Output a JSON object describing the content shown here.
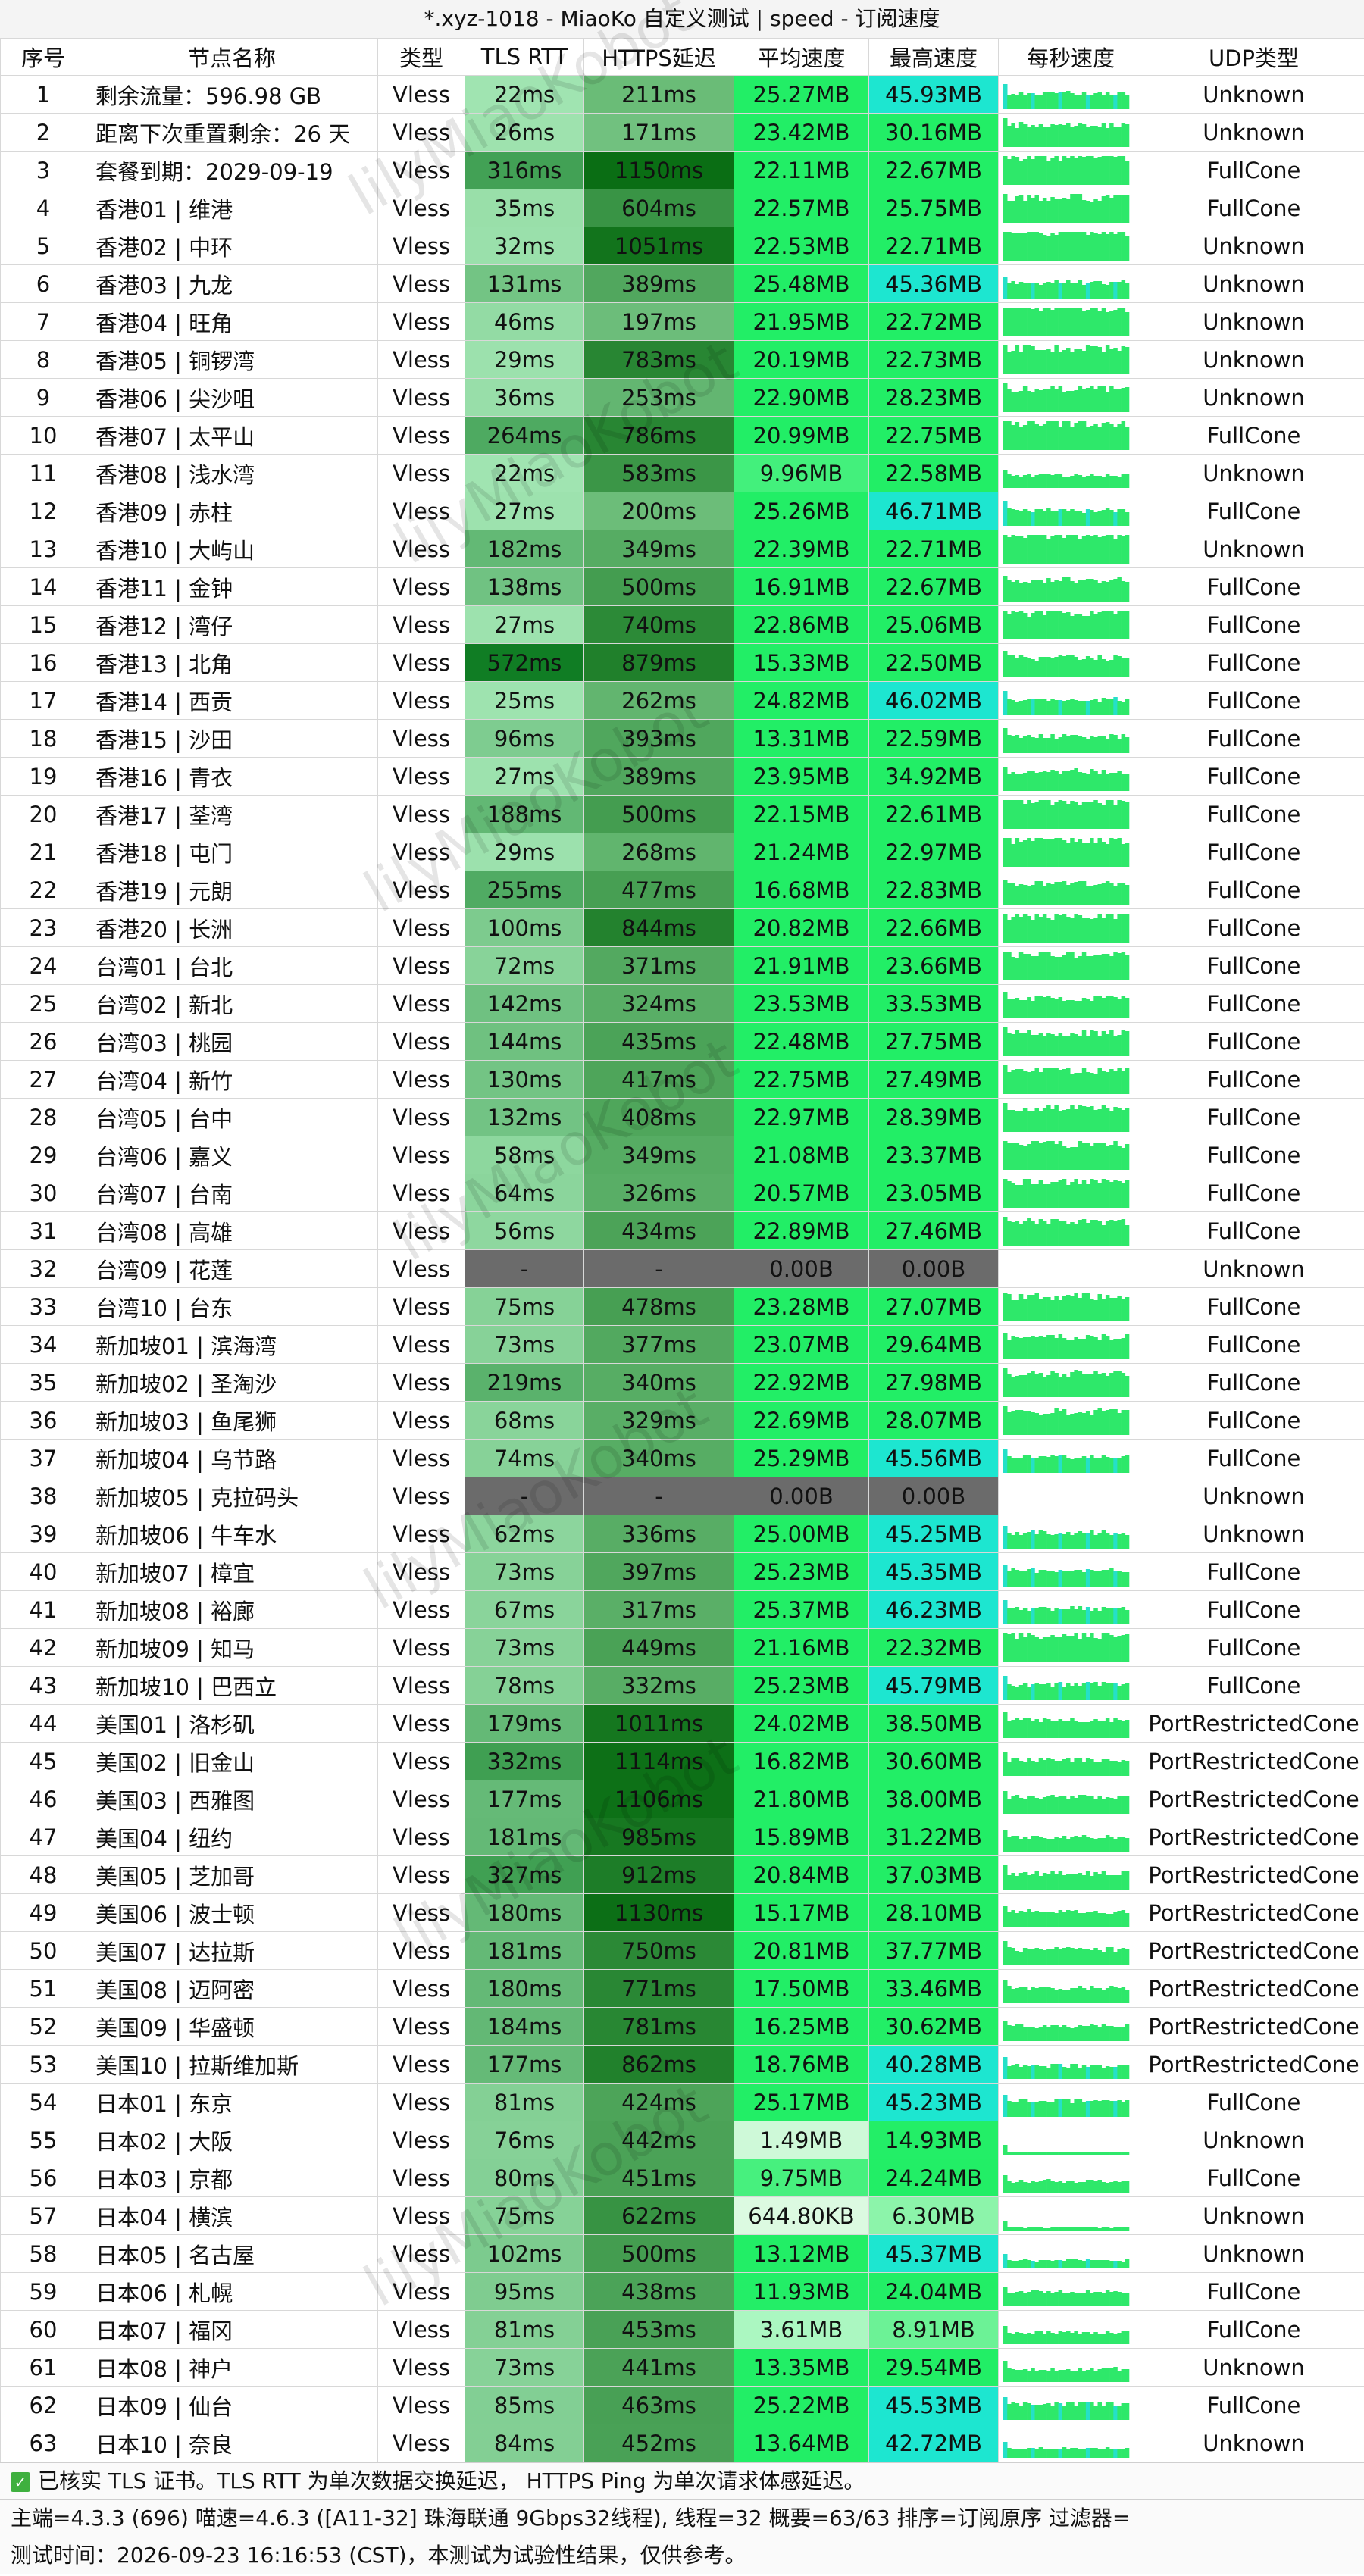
{
  "title": "*.xyz-1018 - MiaoKo 自定义测试 | speed - 订阅速度",
  "headers": [
    "序号",
    "节点名称",
    "类型",
    "TLS RTT",
    "HTTPS延迟",
    "平均速度",
    "最高速度",
    "每秒速度",
    "UDP类型"
  ],
  "watermark": "lilyMiaoKobot",
  "colors": {
    "rtt_light": "#b8f5c8",
    "rtt_dark": "#0b7a1f",
    "https_light": "#a8eeb8",
    "https_dark": "#0a6e14",
    "avg_speed": "#22ee66",
    "max_speed_low": "#22ee66",
    "max_speed_high": "#1de6d0",
    "failed": "#6b6b6b",
    "sparkline": "#2ee86a"
  },
  "rows": [
    {
      "idx": "1",
      "name": "剩余流量：596.98 GB",
      "type": "Vless",
      "rtt": "22ms",
      "https": "211ms",
      "avg": "25.27MB",
      "max": "45.93MB",
      "udp": "Unknown"
    },
    {
      "idx": "2",
      "name": "距离下次重置剩余：26 天",
      "type": "Vless",
      "rtt": "26ms",
      "https": "171ms",
      "avg": "23.42MB",
      "max": "30.16MB",
      "udp": "Unknown"
    },
    {
      "idx": "3",
      "name": "套餐到期：2029-09-19",
      "type": "Vless",
      "rtt": "316ms",
      "https": "1150ms",
      "avg": "22.11MB",
      "max": "22.67MB",
      "udp": "FullCone"
    },
    {
      "idx": "4",
      "name": "香港01 | 维港",
      "type": "Vless",
      "rtt": "35ms",
      "https": "604ms",
      "avg": "22.57MB",
      "max": "25.75MB",
      "udp": "FullCone"
    },
    {
      "idx": "5",
      "name": "香港02 | 中环",
      "type": "Vless",
      "rtt": "32ms",
      "https": "1051ms",
      "avg": "22.53MB",
      "max": "22.71MB",
      "udp": "Unknown"
    },
    {
      "idx": "6",
      "name": "香港03 | 九龙",
      "type": "Vless",
      "rtt": "131ms",
      "https": "389ms",
      "avg": "25.48MB",
      "max": "45.36MB",
      "udp": "Unknown"
    },
    {
      "idx": "7",
      "name": "香港04 | 旺角",
      "type": "Vless",
      "rtt": "46ms",
      "https": "197ms",
      "avg": "21.95MB",
      "max": "22.72MB",
      "udp": "Unknown"
    },
    {
      "idx": "8",
      "name": "香港05 | 铜锣湾",
      "type": "Vless",
      "rtt": "29ms",
      "https": "783ms",
      "avg": "20.19MB",
      "max": "22.73MB",
      "udp": "Unknown"
    },
    {
      "idx": "9",
      "name": "香港06 | 尖沙咀",
      "type": "Vless",
      "rtt": "36ms",
      "https": "253ms",
      "avg": "22.90MB",
      "max": "28.23MB",
      "udp": "Unknown"
    },
    {
      "idx": "10",
      "name": "香港07 | 太平山",
      "type": "Vless",
      "rtt": "264ms",
      "https": "786ms",
      "avg": "20.99MB",
      "max": "22.75MB",
      "udp": "FullCone"
    },
    {
      "idx": "11",
      "name": "香港08 | 浅水湾",
      "type": "Vless",
      "rtt": "22ms",
      "https": "583ms",
      "avg": "9.96MB",
      "max": "22.58MB",
      "udp": "Unknown"
    },
    {
      "idx": "12",
      "name": "香港09 | 赤柱",
      "type": "Vless",
      "rtt": "27ms",
      "https": "200ms",
      "avg": "25.26MB",
      "max": "46.71MB",
      "udp": "FullCone"
    },
    {
      "idx": "13",
      "name": "香港10 | 大屿山",
      "type": "Vless",
      "rtt": "182ms",
      "https": "349ms",
      "avg": "22.39MB",
      "max": "22.71MB",
      "udp": "Unknown"
    },
    {
      "idx": "14",
      "name": "香港11 | 金钟",
      "type": "Vless",
      "rtt": "138ms",
      "https": "500ms",
      "avg": "16.91MB",
      "max": "22.67MB",
      "udp": "FullCone"
    },
    {
      "idx": "15",
      "name": "香港12 | 湾仔",
      "type": "Vless",
      "rtt": "27ms",
      "https": "740ms",
      "avg": "22.86MB",
      "max": "25.06MB",
      "udp": "FullCone"
    },
    {
      "idx": "16",
      "name": "香港13 | 北角",
      "type": "Vless",
      "rtt": "572ms",
      "https": "879ms",
      "avg": "15.33MB",
      "max": "22.50MB",
      "udp": "FullCone"
    },
    {
      "idx": "17",
      "name": "香港14 | 西贡",
      "type": "Vless",
      "rtt": "25ms",
      "https": "262ms",
      "avg": "24.82MB",
      "max": "46.02MB",
      "udp": "FullCone"
    },
    {
      "idx": "18",
      "name": "香港15 | 沙田",
      "type": "Vless",
      "rtt": "96ms",
      "https": "393ms",
      "avg": "13.31MB",
      "max": "22.59MB",
      "udp": "FullCone"
    },
    {
      "idx": "19",
      "name": "香港16 | 青衣",
      "type": "Vless",
      "rtt": "27ms",
      "https": "389ms",
      "avg": "23.95MB",
      "max": "34.92MB",
      "udp": "FullCone"
    },
    {
      "idx": "20",
      "name": "香港17 | 荃湾",
      "type": "Vless",
      "rtt": "188ms",
      "https": "500ms",
      "avg": "22.15MB",
      "max": "22.61MB",
      "udp": "FullCone"
    },
    {
      "idx": "21",
      "name": "香港18 | 屯门",
      "type": "Vless",
      "rtt": "29ms",
      "https": "268ms",
      "avg": "21.24MB",
      "max": "22.97MB",
      "udp": "FullCone"
    },
    {
      "idx": "22",
      "name": "香港19 | 元朗",
      "type": "Vless",
      "rtt": "255ms",
      "https": "477ms",
      "avg": "16.68MB",
      "max": "22.83MB",
      "udp": "FullCone"
    },
    {
      "idx": "23",
      "name": "香港20 | 长洲",
      "type": "Vless",
      "rtt": "100ms",
      "https": "844ms",
      "avg": "20.82MB",
      "max": "22.66MB",
      "udp": "FullCone"
    },
    {
      "idx": "24",
      "name": "台湾01 | 台北",
      "type": "Vless",
      "rtt": "72ms",
      "https": "371ms",
      "avg": "21.91MB",
      "max": "23.66MB",
      "udp": "FullCone"
    },
    {
      "idx": "25",
      "name": "台湾02 | 新北",
      "type": "Vless",
      "rtt": "142ms",
      "https": "324ms",
      "avg": "23.53MB",
      "max": "33.53MB",
      "udp": "FullCone"
    },
    {
      "idx": "26",
      "name": "台湾03 | 桃园",
      "type": "Vless",
      "rtt": "144ms",
      "https": "435ms",
      "avg": "22.48MB",
      "max": "27.75MB",
      "udp": "FullCone"
    },
    {
      "idx": "27",
      "name": "台湾04 | 新竹",
      "type": "Vless",
      "rtt": "130ms",
      "https": "417ms",
      "avg": "22.75MB",
      "max": "27.49MB",
      "udp": "FullCone"
    },
    {
      "idx": "28",
      "name": "台湾05 | 台中",
      "type": "Vless",
      "rtt": "132ms",
      "https": "408ms",
      "avg": "22.97MB",
      "max": "28.39MB",
      "udp": "FullCone"
    },
    {
      "idx": "29",
      "name": "台湾06 | 嘉义",
      "type": "Vless",
      "rtt": "58ms",
      "https": "349ms",
      "avg": "21.08MB",
      "max": "23.37MB",
      "udp": "FullCone"
    },
    {
      "idx": "30",
      "name": "台湾07 | 台南",
      "type": "Vless",
      "rtt": "64ms",
      "https": "326ms",
      "avg": "20.57MB",
      "max": "23.05MB",
      "udp": "FullCone"
    },
    {
      "idx": "31",
      "name": "台湾08 | 高雄",
      "type": "Vless",
      "rtt": "56ms",
      "https": "434ms",
      "avg": "22.89MB",
      "max": "27.46MB",
      "udp": "FullCone"
    },
    {
      "idx": "32",
      "name": "台湾09 | 花莲",
      "type": "Vless",
      "rtt": "-",
      "https": "-",
      "avg": "0.00B",
      "max": "0.00B",
      "udp": "Unknown"
    },
    {
      "idx": "33",
      "name": "台湾10 | 台东",
      "type": "Vless",
      "rtt": "75ms",
      "https": "478ms",
      "avg": "23.28MB",
      "max": "27.07MB",
      "udp": "FullCone"
    },
    {
      "idx": "34",
      "name": "新加坡01 | 滨海湾",
      "type": "Vless",
      "rtt": "73ms",
      "https": "377ms",
      "avg": "23.07MB",
      "max": "29.64MB",
      "udp": "FullCone"
    },
    {
      "idx": "35",
      "name": "新加坡02 | 圣淘沙",
      "type": "Vless",
      "rtt": "219ms",
      "https": "340ms",
      "avg": "22.92MB",
      "max": "27.98MB",
      "udp": "FullCone"
    },
    {
      "idx": "36",
      "name": "新加坡03 | 鱼尾狮",
      "type": "Vless",
      "rtt": "68ms",
      "https": "329ms",
      "avg": "22.69MB",
      "max": "28.07MB",
      "udp": "FullCone"
    },
    {
      "idx": "37",
      "name": "新加坡04 | 乌节路",
      "type": "Vless",
      "rtt": "74ms",
      "https": "340ms",
      "avg": "25.29MB",
      "max": "45.56MB",
      "udp": "FullCone"
    },
    {
      "idx": "38",
      "name": "新加坡05 | 克拉码头",
      "type": "Vless",
      "rtt": "-",
      "https": "-",
      "avg": "0.00B",
      "max": "0.00B",
      "udp": "Unknown"
    },
    {
      "idx": "39",
      "name": "新加坡06 | 牛车水",
      "type": "Vless",
      "rtt": "62ms",
      "https": "336ms",
      "avg": "25.00MB",
      "max": "45.25MB",
      "udp": "Unknown"
    },
    {
      "idx": "40",
      "name": "新加坡07 | 樟宜",
      "type": "Vless",
      "rtt": "73ms",
      "https": "397ms",
      "avg": "25.23MB",
      "max": "45.35MB",
      "udp": "FullCone"
    },
    {
      "idx": "41",
      "name": "新加坡08 | 裕廊",
      "type": "Vless",
      "rtt": "67ms",
      "https": "317ms",
      "avg": "25.37MB",
      "max": "46.23MB",
      "udp": "FullCone"
    },
    {
      "idx": "42",
      "name": "新加坡09 | 知马",
      "type": "Vless",
      "rtt": "73ms",
      "https": "449ms",
      "avg": "21.16MB",
      "max": "22.32MB",
      "udp": "FullCone"
    },
    {
      "idx": "43",
      "name": "新加坡10 | 巴西立",
      "type": "Vless",
      "rtt": "78ms",
      "https": "332ms",
      "avg": "25.23MB",
      "max": "45.79MB",
      "udp": "FullCone"
    },
    {
      "idx": "44",
      "name": "美国01 | 洛杉矶",
      "type": "Vless",
      "rtt": "179ms",
      "https": "1011ms",
      "avg": "24.02MB",
      "max": "38.50MB",
      "udp": "PortRestrictedCone"
    },
    {
      "idx": "45",
      "name": "美国02 | 旧金山",
      "type": "Vless",
      "rtt": "332ms",
      "https": "1114ms",
      "avg": "16.82MB",
      "max": "30.60MB",
      "udp": "PortRestrictedCone"
    },
    {
      "idx": "46",
      "name": "美国03 | 西雅图",
      "type": "Vless",
      "rtt": "177ms",
      "https": "1106ms",
      "avg": "21.80MB",
      "max": "38.00MB",
      "udp": "PortRestrictedCone"
    },
    {
      "idx": "47",
      "name": "美国04 | 纽约",
      "type": "Vless",
      "rtt": "181ms",
      "https": "985ms",
      "avg": "15.89MB",
      "max": "31.22MB",
      "udp": "PortRestrictedCone"
    },
    {
      "idx": "48",
      "name": "美国05 | 芝加哥",
      "type": "Vless",
      "rtt": "327ms",
      "https": "912ms",
      "avg": "20.84MB",
      "max": "37.03MB",
      "udp": "PortRestrictedCone"
    },
    {
      "idx": "49",
      "name": "美国06 | 波士顿",
      "type": "Vless",
      "rtt": "180ms",
      "https": "1130ms",
      "avg": "15.17MB",
      "max": "28.10MB",
      "udp": "PortRestrictedCone"
    },
    {
      "idx": "50",
      "name": "美国07 | 达拉斯",
      "type": "Vless",
      "rtt": "181ms",
      "https": "750ms",
      "avg": "20.81MB",
      "max": "37.77MB",
      "udp": "PortRestrictedCone"
    },
    {
      "idx": "51",
      "name": "美国08 | 迈阿密",
      "type": "Vless",
      "rtt": "180ms",
      "https": "771ms",
      "avg": "17.50MB",
      "max": "33.46MB",
      "udp": "PortRestrictedCone"
    },
    {
      "idx": "52",
      "name": "美国09 | 华盛顿",
      "type": "Vless",
      "rtt": "184ms",
      "https": "781ms",
      "avg": "16.25MB",
      "max": "30.62MB",
      "udp": "PortRestrictedCone"
    },
    {
      "idx": "53",
      "name": "美国10 | 拉斯维加斯",
      "type": "Vless",
      "rtt": "177ms",
      "https": "862ms",
      "avg": "18.76MB",
      "max": "40.28MB",
      "udp": "PortRestrictedCone"
    },
    {
      "idx": "54",
      "name": "日本01 | 东京",
      "type": "Vless",
      "rtt": "81ms",
      "https": "424ms",
      "avg": "25.17MB",
      "max": "45.23MB",
      "udp": "FullCone"
    },
    {
      "idx": "55",
      "name": "日本02 | 大阪",
      "type": "Vless",
      "rtt": "76ms",
      "https": "442ms",
      "avg": "1.49MB",
      "max": "14.93MB",
      "udp": "Unknown"
    },
    {
      "idx": "56",
      "name": "日本03 | 京都",
      "type": "Vless",
      "rtt": "80ms",
      "https": "451ms",
      "avg": "9.75MB",
      "max": "24.24MB",
      "udp": "FullCone"
    },
    {
      "idx": "57",
      "name": "日本04 | 横滨",
      "type": "Vless",
      "rtt": "75ms",
      "https": "622ms",
      "avg": "644.80KB",
      "max": "6.30MB",
      "udp": "Unknown"
    },
    {
      "idx": "58",
      "name": "日本05 | 名古屋",
      "type": "Vless",
      "rtt": "102ms",
      "https": "500ms",
      "avg": "13.12MB",
      "max": "45.37MB",
      "udp": "Unknown"
    },
    {
      "idx": "59",
      "name": "日本06 | 札幌",
      "type": "Vless",
      "rtt": "95ms",
      "https": "438ms",
      "avg": "11.93MB",
      "max": "24.04MB",
      "udp": "FullCone"
    },
    {
      "idx": "60",
      "name": "日本07 | 福冈",
      "type": "Vless",
      "rtt": "81ms",
      "https": "453ms",
      "avg": "3.61MB",
      "max": "8.91MB",
      "udp": "FullCone"
    },
    {
      "idx": "61",
      "name": "日本08 | 神户",
      "type": "Vless",
      "rtt": "73ms",
      "https": "441ms",
      "avg": "13.35MB",
      "max": "29.54MB",
      "udp": "Unknown"
    },
    {
      "idx": "62",
      "name": "日本09 | 仙台",
      "type": "Vless",
      "rtt": "85ms",
      "https": "463ms",
      "avg": "25.22MB",
      "max": "45.53MB",
      "udp": "FullCone"
    },
    {
      "idx": "63",
      "name": "日本10 | 奈良",
      "type": "Vless",
      "rtt": "84ms",
      "https": "452ms",
      "avg": "13.64MB",
      "max": "42.72MB",
      "udp": "Unknown"
    }
  ],
  "footer": {
    "note": "已核实 TLS 证书。TLS RTT 为单次数据交换延迟， HTTPS Ping 为单次请求体感延迟。",
    "info": "主端=4.3.3 (696) 喵速=4.6.3 ([A11-32] 珠海联通 9Gbps32线程), 线程=32 概要=63/63 排序=订阅原序 过滤器=",
    "time": "测试时间：2026-09-23 16:16:53 (CST)，本测试为试验性结果，仅供参考。"
  }
}
